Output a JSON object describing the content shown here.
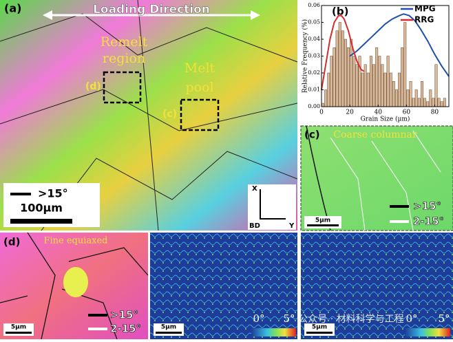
{
  "panel_a": {
    "label": "(a)",
    "loading_direction": "Loading Direction",
    "remelt_region": [
      "Remelt",
      "region"
    ],
    "melt_pool": [
      "Melt",
      "pool"
    ],
    "box_d": "(d)",
    "box_c": "(c)",
    "legend_boundary": ">15°",
    "scale_bar": "100µm",
    "axes": [
      "X",
      "BD",
      "Y"
    ]
  },
  "chart_data": {
    "type": "histogram",
    "label": "(b)",
    "xlabel": "Grain Size (µm)",
    "ylabel": "Relative Frequency (%)",
    "bins": [
      0,
      2,
      4,
      6,
      8,
      10,
      12,
      14,
      16,
      18,
      20,
      22,
      24,
      26,
      28,
      30,
      32,
      34,
      36,
      38,
      40,
      42,
      44,
      46,
      48,
      50,
      52,
      54,
      56,
      58,
      60,
      62,
      64,
      66,
      68,
      70,
      72,
      74,
      76,
      78,
      80,
      82,
      84,
      86,
      88
    ],
    "values": [
      0.002,
      0.01,
      0.02,
      0.03,
      0.035,
      0.045,
      0.05,
      0.045,
      0.04,
      0.035,
      0.04,
      0.03,
      0.025,
      0.03,
      0.02,
      0.025,
      0.02,
      0.03,
      0.025,
      0.035,
      0.03,
      0.025,
      0.02,
      0.03,
      0.02,
      0.015,
      0.01,
      0.02,
      0.035,
      0.05,
      0.01,
      0.015,
      0.005,
      0.01,
      0.005,
      0.015,
      0.005,
      0.003,
      0.01,
      0.005,
      0.025,
      0.005,
      0.003,
      0.005
    ],
    "color": "#d9b99b",
    "series": [
      {
        "name": "MPG",
        "color": "#1f4fa8",
        "x": [
          20,
          25,
          30,
          35,
          40,
          45,
          50,
          55,
          58,
          62,
          66,
          70,
          75,
          80,
          85,
          90
        ],
        "values": [
          0.03,
          0.033,
          0.037,
          0.041,
          0.045,
          0.049,
          0.052,
          0.054,
          0.055,
          0.054,
          0.051,
          0.046,
          0.039,
          0.031,
          0.024,
          0.018
        ]
      },
      {
        "name": "RRG",
        "color": "#d42a2a",
        "x": [
          0,
          3,
          6,
          9,
          12,
          14,
          16,
          19,
          22,
          25,
          28,
          30
        ],
        "values": [
          0.01,
          0.025,
          0.04,
          0.05,
          0.054,
          0.054,
          0.052,
          0.045,
          0.035,
          0.027,
          0.022,
          0.021
        ]
      }
    ],
    "xlim": [
      0,
      90
    ],
    "ylim": [
      0,
      0.06
    ],
    "xticks": [
      0,
      20,
      40,
      60,
      80
    ],
    "yticks": [
      {
        "value": 0,
        "label": "0.00"
      },
      0.01,
      0.02,
      0.03,
      0.04,
      0.05,
      0.06
    ],
    "legend": "upper right"
  },
  "panel_c": {
    "label": "(c)",
    "title": "Coarse columnar",
    "scale_bar": "5µm",
    "legend": [
      ">15°",
      "2-15°"
    ]
  },
  "panel_d": {
    "label": "(d)",
    "title": "Fine equiaxed",
    "scale_bar": "5µm",
    "legend": [
      ">15°",
      "2-15°"
    ]
  },
  "panel_kam_d": {
    "scale_bar": "5µm",
    "colorbar": [
      "0°",
      "5°"
    ]
  },
  "panel_kam_c": {
    "scale_bar": "5µm",
    "colorbar": [
      "0°",
      "5°"
    ]
  },
  "watermark": "公众号 · 材料科学与工程"
}
